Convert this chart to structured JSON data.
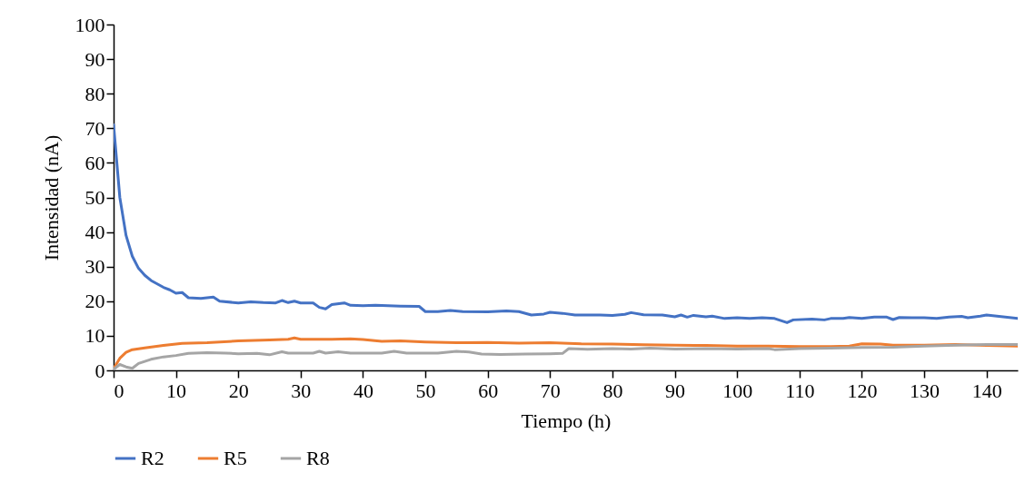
{
  "chart_data": {
    "type": "line",
    "xlabel": "Tiempo (h)",
    "ylabel": "Intensidad (nA)",
    "xlim": [
      0,
      145
    ],
    "xticks": [
      0,
      10,
      20,
      30,
      40,
      50,
      60,
      70,
      80,
      90,
      100,
      110,
      120,
      130,
      140
    ],
    "ylim": [
      0,
      100
    ],
    "yticks": [
      0,
      10,
      20,
      30,
      40,
      50,
      60,
      70,
      80,
      90,
      100
    ],
    "grid": false,
    "legend": "bottom",
    "marker": "none",
    "line_style": "solid",
    "series": [
      {
        "name": "R2",
        "color": "#4472c4",
        "x": [
          0,
          1,
          2,
          3,
          4,
          5,
          6,
          7,
          8,
          9,
          10,
          11,
          12,
          14,
          16,
          17,
          20,
          22,
          24,
          26,
          27,
          28,
          29,
          30,
          32,
          33,
          34,
          35,
          37,
          38,
          40,
          42,
          46,
          49,
          50,
          52,
          54,
          56,
          60,
          63,
          65,
          67,
          69,
          70,
          72,
          74,
          76,
          78,
          80,
          82,
          83,
          85,
          88,
          90,
          91,
          92,
          93,
          95,
          96,
          98,
          100,
          102,
          104,
          106,
          108,
          109,
          112,
          114,
          115,
          117,
          118,
          120,
          122,
          124,
          125,
          126,
          128,
          130,
          132,
          134,
          136,
          137,
          139,
          140,
          142,
          145
        ],
        "values": [
          71,
          50,
          39,
          33,
          29.5,
          27.5,
          26,
          25,
          24,
          23.3,
          22.3,
          22.5,
          21,
          20.8,
          21.2,
          20,
          19.5,
          19.8,
          19.6,
          19.5,
          20.2,
          19.6,
          20,
          19.5,
          19.5,
          18.2,
          17.8,
          19,
          19.5,
          18.8,
          18.7,
          18.8,
          18.6,
          18.5,
          17,
          17,
          17.3,
          17,
          16.9,
          17.2,
          17,
          16,
          16.3,
          16.8,
          16.5,
          16,
          16,
          16,
          15.9,
          16.2,
          16.7,
          16.1,
          16,
          15.5,
          16,
          15.4,
          15.9,
          15.5,
          15.7,
          15,
          15.2,
          15,
          15.2,
          15,
          13.8,
          14.6,
          14.8,
          14.6,
          15,
          15,
          15.3,
          15,
          15.4,
          15.4,
          14.7,
          15.3,
          15.2,
          15.2,
          15,
          15.4,
          15.6,
          15.2,
          15.7,
          16,
          15.6,
          15
        ]
      },
      {
        "name": "R5",
        "color": "#ed7d31",
        "x": [
          0,
          1,
          2,
          3,
          5,
          8,
          11,
          15,
          20,
          25,
          28,
          29,
          30,
          35,
          38,
          40,
          43,
          46,
          50,
          55,
          60,
          65,
          70,
          75,
          80,
          85,
          90,
          95,
          100,
          105,
          110,
          115,
          118,
          120,
          123,
          125,
          130,
          135,
          140,
          145
        ],
        "values": [
          0.5,
          3.5,
          5.2,
          6,
          6.5,
          7.2,
          7.8,
          8,
          8.5,
          8.8,
          9,
          9.4,
          9,
          9,
          9.1,
          8.9,
          8.4,
          8.5,
          8.2,
          8,
          8.1,
          7.9,
          8,
          7.7,
          7.6,
          7.4,
          7.3,
          7.2,
          7,
          7,
          6.9,
          6.9,
          7,
          7.7,
          7.6,
          7.3,
          7.3,
          7.5,
          7.2,
          7
        ]
      },
      {
        "name": "R8",
        "color": "#a5a5a5",
        "x": [
          0,
          1,
          2,
          3,
          4,
          6,
          8,
          10,
          12,
          15,
          18,
          20,
          23,
          25,
          27,
          28,
          32,
          33,
          34,
          36,
          38,
          43,
          45,
          47,
          52,
          55,
          57,
          59,
          62,
          66,
          70,
          72,
          73,
          76,
          80,
          83,
          86,
          90,
          95,
          100,
          105,
          106,
          110,
          115,
          120,
          125,
          130,
          135,
          140,
          145
        ],
        "values": [
          0.3,
          1.7,
          1,
          0.6,
          2,
          3.2,
          3.9,
          4.3,
          4.9,
          5.1,
          5,
          4.8,
          4.9,
          4.5,
          5.4,
          5,
          5,
          5.5,
          5,
          5.4,
          5,
          5,
          5.5,
          5,
          5,
          5.5,
          5.3,
          4.7,
          4.6,
          4.7,
          4.8,
          4.9,
          6.3,
          6.1,
          6.3,
          6.2,
          6.4,
          6.2,
          6.3,
          6.2,
          6.3,
          6,
          6.3,
          6.4,
          6.6,
          6.7,
          7,
          7.3,
          7.5,
          7.5
        ]
      }
    ]
  }
}
